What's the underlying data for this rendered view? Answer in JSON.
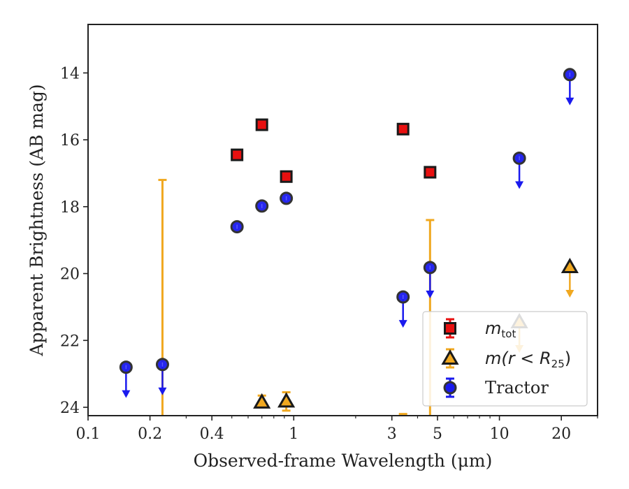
{
  "chart_data": {
    "type": "scatter",
    "title": "",
    "xlabel": "Observed-frame Wavelength (μm)",
    "ylabel": "Apparent Brightness (AB mag)",
    "x_scale": "log",
    "xlim": [
      0.1,
      30
    ],
    "ylim": [
      24.25,
      12.55
    ],
    "y_inverted": true,
    "grid": false,
    "legend_position": "lower-right",
    "x_ticks": [
      {
        "value": 0.1,
        "label": "0.1"
      },
      {
        "value": 0.2,
        "label": "0.2"
      },
      {
        "value": 0.4,
        "label": "0.4"
      },
      {
        "value": 1,
        "label": "1"
      },
      {
        "value": 3,
        "label": "3"
      },
      {
        "value": 5,
        "label": "5"
      },
      {
        "value": 10,
        "label": "10"
      },
      {
        "value": 20,
        "label": "20"
      }
    ],
    "y_ticks": [
      {
        "value": 14,
        "label": "14"
      },
      {
        "value": 16,
        "label": "16"
      },
      {
        "value": 18,
        "label": "18"
      },
      {
        "value": 20,
        "label": "20"
      },
      {
        "value": 22,
        "label": "22"
      },
      {
        "value": 24,
        "label": "24"
      }
    ],
    "series": [
      {
        "name": "m_tot",
        "legend_main": "m",
        "legend_sub": "tot",
        "marker": "square",
        "color": "#e81010",
        "edge_color": "#1a1a1a",
        "points": [
          {
            "x": 0.53,
            "y": 16.45
          },
          {
            "x": 0.7,
            "y": 15.55
          },
          {
            "x": 0.92,
            "y": 17.1
          },
          {
            "x": 3.4,
            "y": 15.68
          },
          {
            "x": 4.6,
            "y": 16.97
          }
        ]
      },
      {
        "name": "m(r < R_25)",
        "legend_main": "m(r < R",
        "legend_sub": "25",
        "legend_close": ")",
        "marker": "triangle",
        "color": "#f0a820",
        "edge_color": "#1a1a1a",
        "points": [
          {
            "x": 0.23,
            "err_low": 24.4,
            "err_high": 17.2
          },
          {
            "x": 0.7,
            "y": 23.85,
            "err_low": 23.9,
            "err_high": 23.65
          },
          {
            "x": 0.92,
            "y": 23.82,
            "err_low": 24.1,
            "err_high": 23.55
          },
          {
            "x": 3.4,
            "err_low": 24.4,
            "err_high": 24.2
          },
          {
            "x": 4.6,
            "err_low": 24.4,
            "err_high": 18.4
          },
          {
            "x": 12.5,
            "y": 21.45,
            "upper_limit": true
          },
          {
            "x": 22,
            "y": 19.8,
            "upper_limit": true
          }
        ]
      },
      {
        "name": "Tractor",
        "legend_main": "Tractor",
        "marker": "circle",
        "color": "#1a1aee",
        "edge_color": "#333333",
        "points": [
          {
            "x": 0.153,
            "y": 22.8,
            "upper_limit": true
          },
          {
            "x": 0.23,
            "y": 22.72,
            "upper_limit": true
          },
          {
            "x": 0.53,
            "y": 18.6
          },
          {
            "x": 0.7,
            "y": 17.98
          },
          {
            "x": 0.92,
            "y": 17.75
          },
          {
            "x": 3.4,
            "y": 20.7,
            "upper_limit": true
          },
          {
            "x": 4.6,
            "y": 19.82,
            "upper_limit": true
          },
          {
            "x": 12.5,
            "y": 16.55,
            "upper_limit": true
          },
          {
            "x": 22,
            "y": 14.05,
            "upper_limit": true
          }
        ]
      }
    ]
  }
}
